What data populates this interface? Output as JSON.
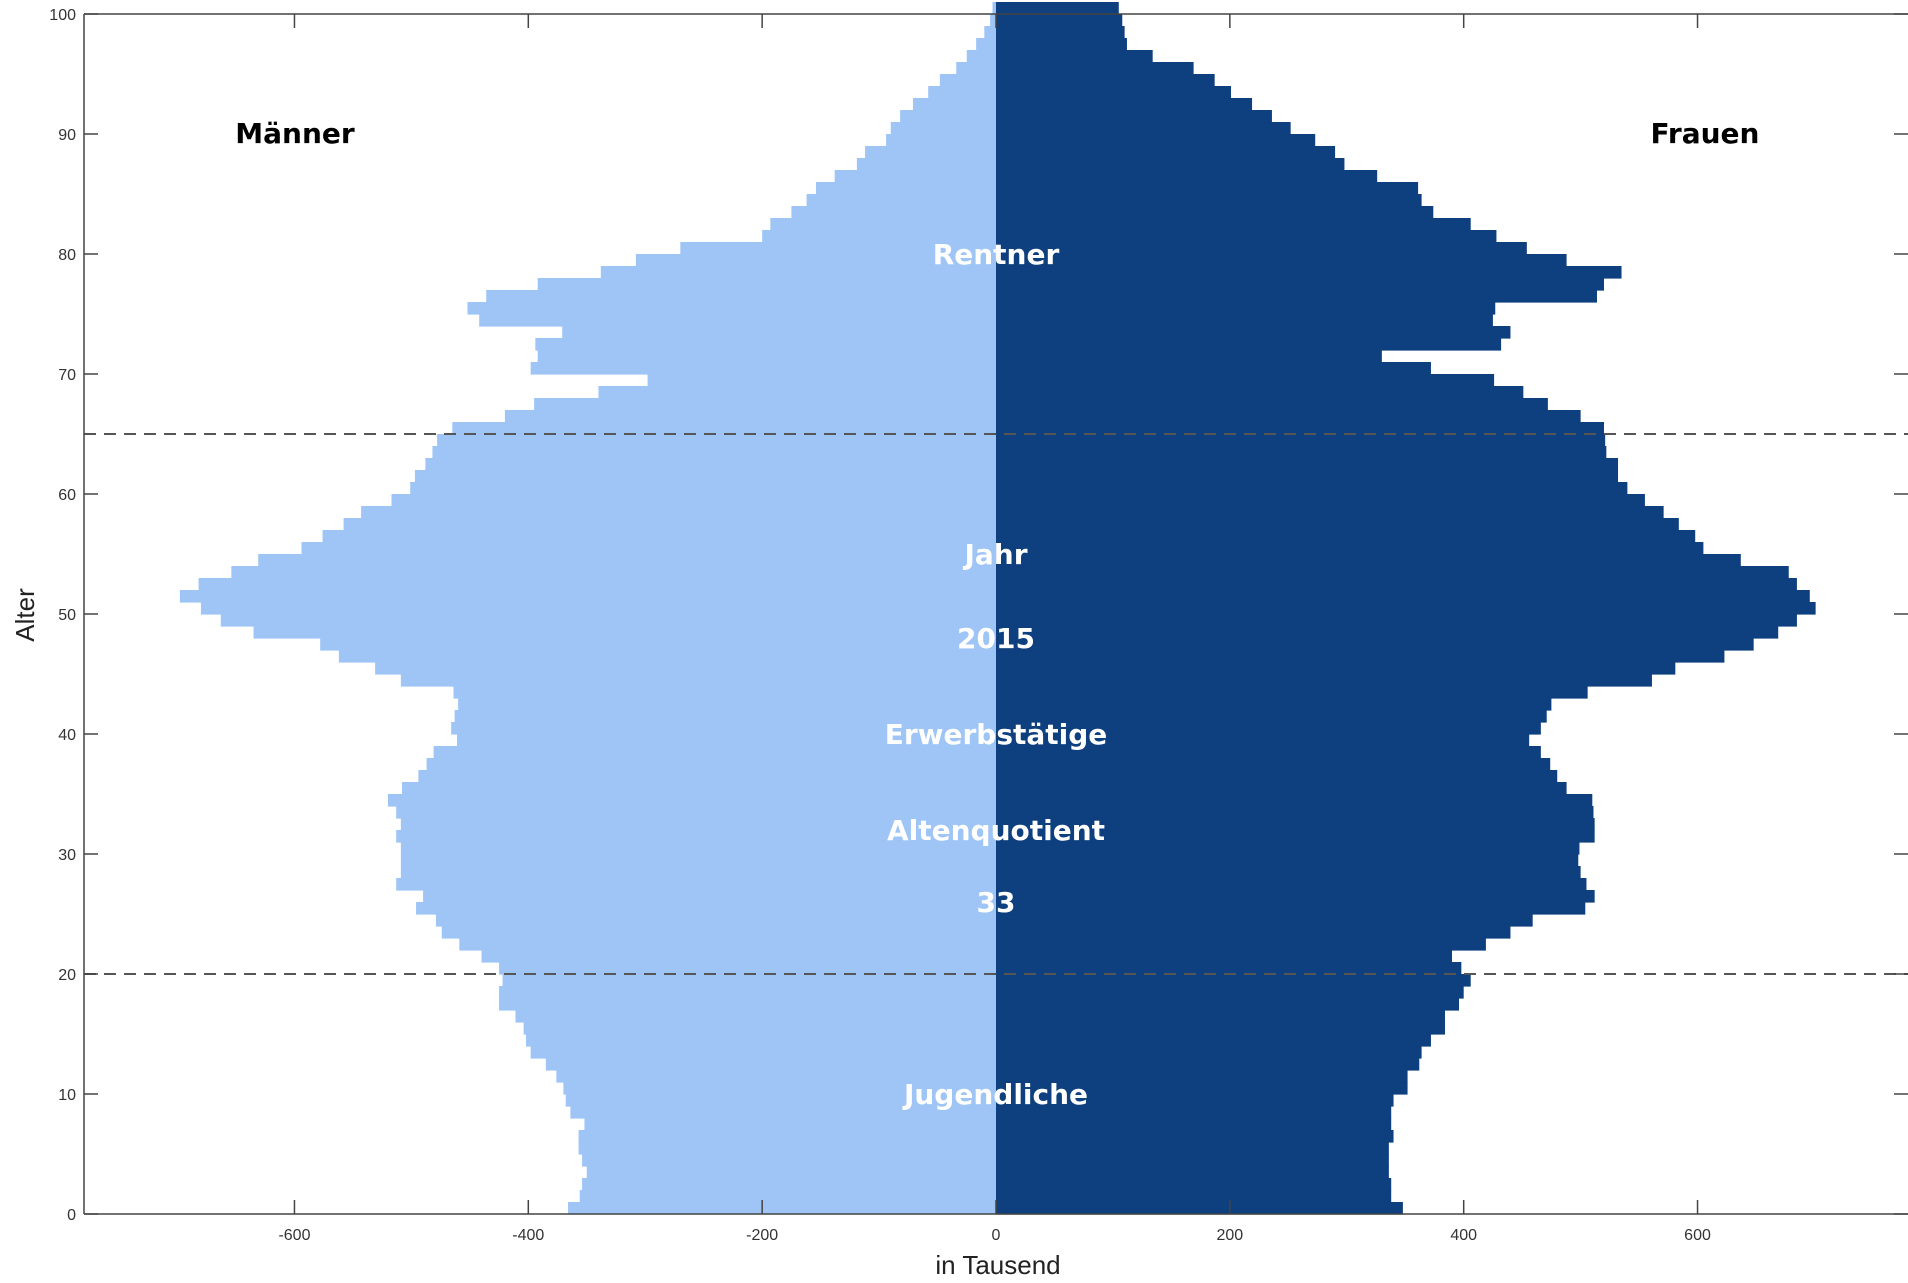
{
  "chart_data": {
    "type": "bar",
    "orientation": "horizontal",
    "subtype": "population-pyramid",
    "title": "",
    "xlabel": "in Tausend",
    "ylabel": "Alter",
    "xlim": [
      -780,
      780
    ],
    "ylim": [
      0,
      100
    ],
    "x_ticks": [
      -600,
      -400,
      -200,
      0,
      200,
      400,
      600
    ],
    "y_ticks": [
      0,
      10,
      20,
      30,
      40,
      50,
      60,
      70,
      80,
      90,
      100
    ],
    "grid": false,
    "reference_lines": [
      {
        "axis": "y",
        "value": 20,
        "style": "dashed"
      },
      {
        "axis": "y",
        "value": 65,
        "style": "dashed"
      }
    ],
    "side_labels": {
      "left": "Männer",
      "right": "Frauen"
    },
    "annotations": [
      {
        "text": "Rentner",
        "age": 80
      },
      {
        "text": "Jahr",
        "age": 55
      },
      {
        "text": "2015",
        "age": 48
      },
      {
        "text": "Erwerbstätige",
        "age": 40
      },
      {
        "text": "Altenquotient",
        "age": 32
      },
      {
        "text": "33",
        "age": 26
      },
      {
        "text": "Jugendliche",
        "age": 10
      }
    ],
    "ages": [
      0,
      1,
      2,
      3,
      4,
      5,
      6,
      7,
      8,
      9,
      10,
      11,
      12,
      13,
      14,
      15,
      16,
      17,
      18,
      19,
      20,
      21,
      22,
      23,
      24,
      25,
      26,
      27,
      28,
      29,
      30,
      31,
      32,
      33,
      34,
      35,
      36,
      37,
      38,
      39,
      40,
      41,
      42,
      43,
      44,
      45,
      46,
      47,
      48,
      49,
      50,
      51,
      52,
      53,
      54,
      55,
      56,
      57,
      58,
      59,
      60,
      61,
      62,
      63,
      64,
      65,
      66,
      67,
      68,
      69,
      70,
      71,
      72,
      73,
      74,
      75,
      76,
      77,
      78,
      79,
      80,
      81,
      82,
      83,
      84,
      85,
      86,
      87,
      88,
      89,
      90,
      91,
      92,
      93,
      94,
      95,
      96,
      97,
      98,
      99,
      100
    ],
    "series": [
      {
        "name": "Männer",
        "color": "#9ec5f6",
        "values": [
          -366,
          -356,
          -354,
          -350,
          -354,
          -357,
          -357,
          -352,
          -364,
          -368,
          -370,
          -376,
          -385,
          -398,
          -402,
          -404,
          -411,
          -425,
          -425,
          -422,
          -425,
          -440,
          -459,
          -474,
          -479,
          -496,
          -490,
          -513,
          -509,
          -509,
          -509,
          -513,
          -509,
          -513,
          -520,
          -508,
          -494,
          -487,
          -481,
          -461,
          -466,
          -463,
          -460,
          -464,
          -509,
          -531,
          -562,
          -578,
          -635,
          -663,
          -680,
          -698,
          -682,
          -654,
          -631,
          -594,
          -576,
          -558,
          -543,
          -517,
          -501,
          -497,
          -488,
          -482,
          -478,
          -465,
          -420,
          -395,
          -340,
          -298,
          -398,
          -392,
          -394,
          -371,
          -442,
          -452,
          -436,
          -392,
          -338,
          -308,
          -270,
          -200,
          -193,
          -175,
          -162,
          -154,
          -138,
          -119,
          -112,
          -94,
          -90,
          -82,
          -71,
          -58,
          -48,
          -34,
          -25,
          -17,
          -10,
          -5,
          -3
        ]
      },
      {
        "name": "Frauen",
        "color": "#0e3f7e",
        "values": [
          348,
          338,
          338,
          336,
          336,
          336,
          340,
          338,
          338,
          340,
          352,
          352,
          362,
          364,
          372,
          384,
          384,
          396,
          400,
          406,
          398,
          390,
          419,
          440,
          459,
          504,
          512,
          505,
          500,
          498,
          499,
          512,
          512,
          511,
          510,
          488,
          480,
          474,
          466,
          456,
          466,
          471,
          475,
          506,
          561,
          581,
          623,
          648,
          669,
          685,
          701,
          696,
          685,
          678,
          637,
          605,
          598,
          584,
          571,
          555,
          540,
          532,
          532,
          522,
          521,
          520,
          500,
          472,
          451,
          426,
          372,
          330,
          432,
          440,
          425,
          427,
          514,
          520,
          535,
          488,
          454,
          428,
          406,
          374,
          364,
          361,
          326,
          298,
          290,
          273,
          252,
          236,
          219,
          201,
          187,
          169,
          134,
          112,
          110,
          108,
          105
        ]
      }
    ]
  }
}
